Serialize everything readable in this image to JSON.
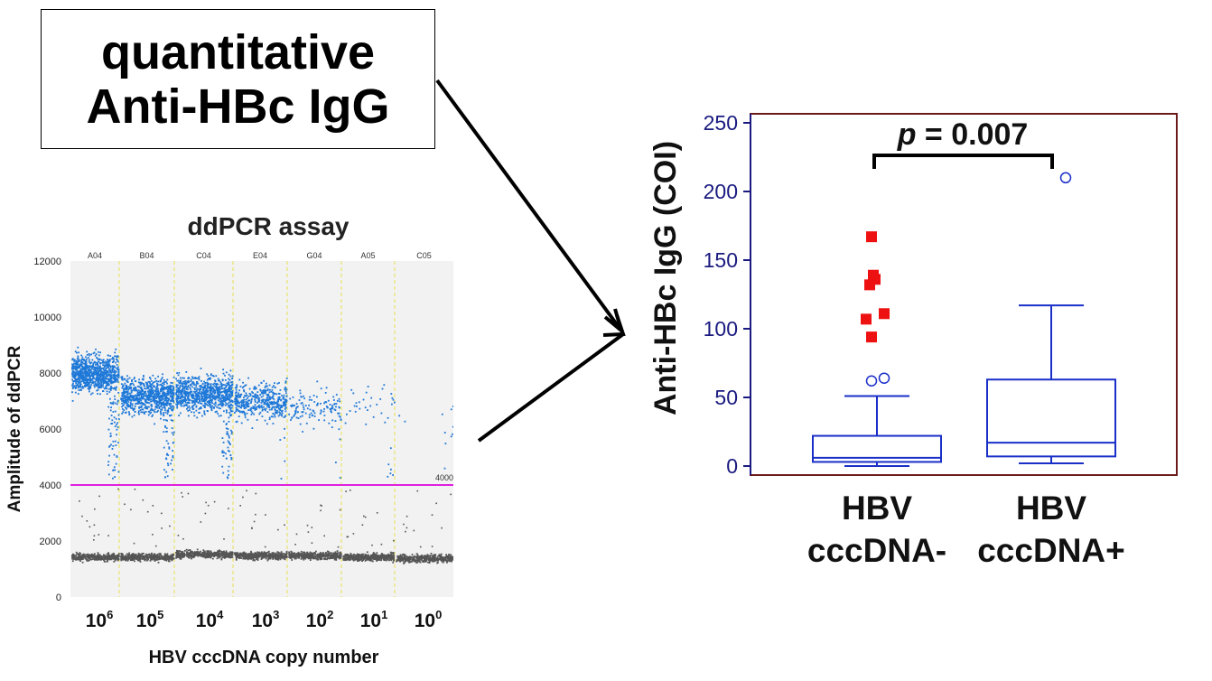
{
  "title_box": {
    "line1": "quantitative",
    "line2": "Anti-HBc IgG"
  },
  "chart_data": [
    {
      "type": "scatter",
      "title": "ddPCR assay",
      "ylabel": "Amplitude of ddPCR",
      "xlabel": "HBV cccDNA copy number",
      "ylim": [
        0,
        12000
      ],
      "yticks": [
        "0",
        "2000",
        "4000",
        "6000",
        "8000",
        "10000",
        "12000"
      ],
      "well_labels": [
        "A04",
        "B04",
        "C04",
        "E04",
        "G04",
        "A05",
        "C05"
      ],
      "x_tick_bases": [
        "10",
        "10",
        "10",
        "10",
        "10",
        "10",
        "10"
      ],
      "x_tick_exponents": [
        "6",
        "5",
        "4",
        "3",
        "2",
        "1",
        "0"
      ],
      "threshold": 4000,
      "threshold_label": "4000",
      "positive_cluster_amplitude": [
        8000,
        7200,
        7300,
        7000,
        6800,
        7000,
        6600
      ],
      "negative_cluster_amplitude": [
        1450,
        1450,
        1550,
        1500,
        1500,
        1450,
        1400
      ],
      "colors": {
        "positive": "#1e78d8",
        "negative": "#555555",
        "threshold": "#e020e0",
        "well_divider": "#e8e050",
        "background": "#f2f2f2"
      }
    },
    {
      "type": "box",
      "ylabel": "Anti-HBc IgG (COI)",
      "ylim": [
        0,
        250
      ],
      "yticks": [
        "0",
        "50",
        "100",
        "150",
        "200",
        "250"
      ],
      "categories": [
        [
          "HBV",
          "cccDNA-"
        ],
        [
          "HBV",
          "cccDNA+"
        ]
      ],
      "boxes": [
        {
          "whisker_low": 0,
          "q1": 3,
          "median": 6,
          "q3": 22,
          "whisker_high": 51,
          "outliers_open": [
            62,
            64
          ],
          "outliers_filled": [
            94,
            107,
            111,
            132,
            136,
            139,
            167
          ]
        },
        {
          "whisker_low": 2,
          "q1": 7,
          "median": 17,
          "q3": 63,
          "whisker_high": 117,
          "outliers_open": [
            210
          ],
          "outliers_filled": []
        }
      ],
      "annotation": {
        "p_italic": "p",
        "rest": " = 0.007"
      },
      "colors": {
        "box": "#1a2fc8",
        "axis": "#1a1a80",
        "frame": "#6b1a1a",
        "filled_outlier": "#ee1111"
      }
    }
  ]
}
